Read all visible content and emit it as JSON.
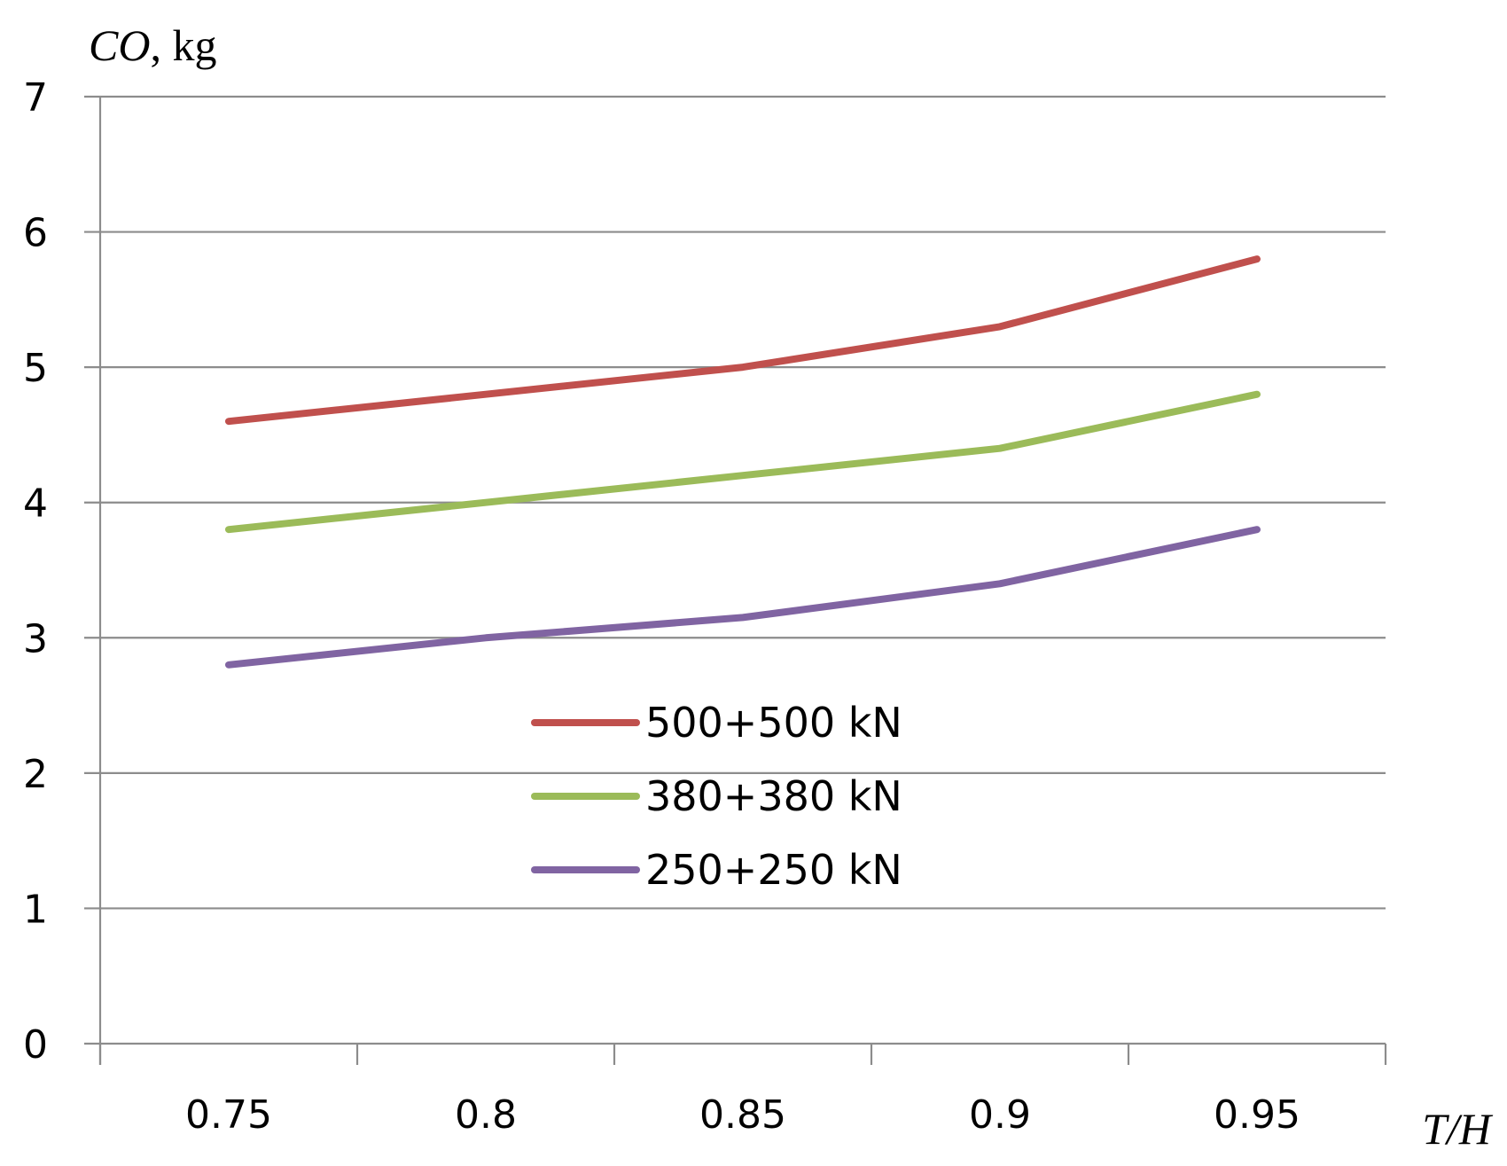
{
  "chart_data": {
    "type": "line",
    "title": "",
    "ylabel": "CO, kg",
    "ylabel_parts": {
      "var": "CO",
      "unit": ", kg"
    },
    "xlabel": "T/H",
    "categories": [
      "0.75",
      "0.8",
      "0.85",
      "0.9",
      "0.95"
    ],
    "ylim": [
      0,
      7
    ],
    "yticks": [
      0,
      1,
      2,
      3,
      4,
      5,
      6,
      7
    ],
    "grid": true,
    "legend_position": "center",
    "series": [
      {
        "name": "500+500 kN",
        "color": "#C0504D",
        "values": [
          4.6,
          4.8,
          5.0,
          5.3,
          5.8
        ]
      },
      {
        "name": "380+380 kN",
        "color": "#9BBB59",
        "values": [
          3.8,
          4.0,
          4.2,
          4.4,
          4.8
        ]
      },
      {
        "name": "250+250 kN",
        "color": "#8064A2",
        "values": [
          2.8,
          3.0,
          3.15,
          3.4,
          3.8
        ]
      }
    ]
  }
}
